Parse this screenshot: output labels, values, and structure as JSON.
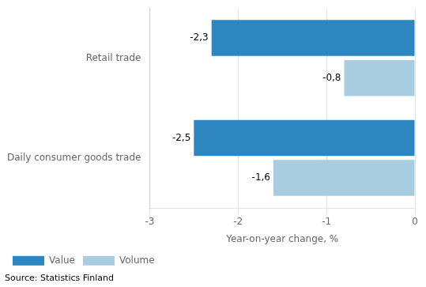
{
  "chart_data": {
    "type": "bar",
    "orientation": "horizontal",
    "categories": [
      "Daily consumer goods trade",
      "Retail trade"
    ],
    "series": [
      {
        "name": "Value",
        "color": "#2e86c0",
        "values": [
          -2.5,
          -2.3
        ],
        "value_labels": [
          "-2,5",
          "-2,3"
        ]
      },
      {
        "name": "Volume",
        "color": "#a8cde0",
        "values": [
          -1.6,
          -0.8
        ],
        "value_labels": [
          "-1,6",
          "-0,8"
        ]
      }
    ],
    "xlabel": "Year-on-year change, %",
    "xlim": [
      -3,
      0
    ],
    "xticks": [
      -3,
      -2,
      -1,
      0
    ],
    "grid": "x",
    "legend": "lower left",
    "data_labels": true,
    "annotations": [
      "Source: Statistics Finland"
    ]
  }
}
